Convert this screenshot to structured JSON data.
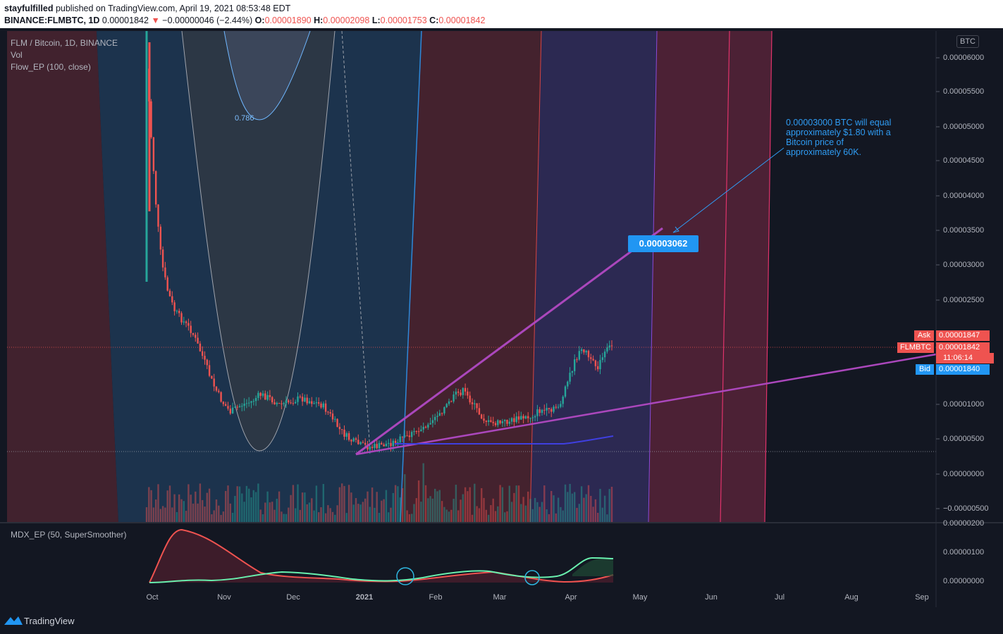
{
  "header": {
    "author": "stayfulfilled",
    "published": " published on TradingView.com, April 19, 2021 08:53:48 EDT",
    "symbol_line": "BINANCE:FLMBTC, 1D",
    "last": "0.00001842",
    "change_arrow": "▼",
    "change": "−0.00000046 (−2.44%)",
    "o_label": "O:",
    "o_value": "0.00001890",
    "h_label": "H:",
    "h_value": "0.00002098",
    "l_label": "L:",
    "l_value": "0.00001753",
    "c_label": "C:",
    "c_value": "0.00001842"
  },
  "legend": {
    "title": "FLM / Bitcoin, 1D, BINANCE",
    "vol": "Vol",
    "indicator": "Flow_EP (100, close)",
    "sub_indicator": "MDX_EP (50, SuperSmoother)"
  },
  "fib_label": "0.786",
  "annotation": "0.00003000 BTC will equal approximately $1.80 with a Bitcoin price of approximately 60K.",
  "price_tag": "0.00003062",
  "currency_box": "BTC",
  "side_tags": {
    "ask_label": "Ask",
    "ask_value": "0.00001847",
    "sym_label": "FLMBTC",
    "sym_value": "0.00001842",
    "countdown": "11:06:14",
    "bid_label": "Bid",
    "bid_value": "0.00001840"
  },
  "y_axis": [
    "0.00006000",
    "0.00005500",
    "0.00005000",
    "0.00004500",
    "0.00004000",
    "0.00003500",
    "0.00003000",
    "0.00002500",
    "0.00001000",
    "0.00000500",
    "0.00000000",
    "−0.00000500"
  ],
  "sub_y_axis": [
    "0.00000200",
    "0.00000100",
    "0.00000000"
  ],
  "x_axis": [
    "Oct",
    "Nov",
    "Dec",
    "2021",
    "Feb",
    "Mar",
    "Apr",
    "May",
    "Jun",
    "Jul",
    "Aug",
    "Sep"
  ],
  "brand": "TradingView",
  "colors": {
    "up": "#26a69a",
    "down": "#ef5350",
    "trend": "#ab47bc",
    "accent": "#2196f3"
  }
}
